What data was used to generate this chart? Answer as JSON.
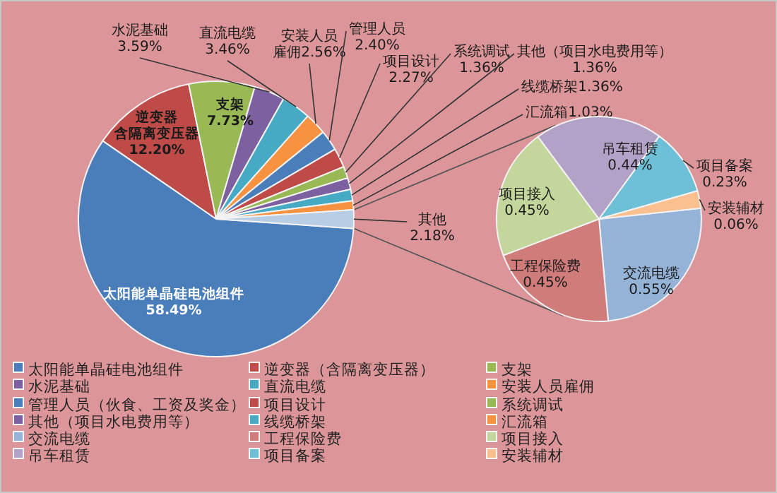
{
  "chart_data": [
    {
      "type": "pie",
      "legend": "bottom",
      "categories": [
        "太阳能单晶硅电池组件",
        "逆变器（含隔离变压器）",
        "支架",
        "水泥基础",
        "直流电缆",
        "安装人员雇佣",
        "管理人员（伙食、工资及奖金）",
        "项目设计",
        "系统调试",
        "其他（项目水电费用等）",
        "线缆桥架",
        "汇流箱",
        null
      ],
      "values": [
        58.49,
        12.2,
        7.73,
        3.59,
        3.46,
        2.56,
        2.4,
        2.27,
        1.36,
        1.36,
        1.36,
        1.03,
        2.18
      ],
      "colors": [
        "#4a7ebb",
        "#be4b48",
        "#98b954",
        "#7d60a0",
        "#46aac5",
        "#f69240",
        "#4a7ebb",
        "#be4b48",
        "#98b954",
        "#7d60a0",
        "#46aac5",
        "#f69240",
        "#b9cde5"
      ],
      "value_labels": [
        "太阳能单晶硅电池组件\n58.49%",
        "逆变器含隔离变压器\n12.20%",
        "支架\n7.73%",
        "水泥基础\n3.59%",
        "直流电缆\n3.46%",
        "安装人员雇佣2.56%",
        "管理人员\n2.40%",
        "项目设计\n2.27%",
        "系统调试\n1.36%",
        "其他（项目水电费用等）\n1.36%",
        "线缆桥架1.36%",
        "汇流箱1.03%",
        "其他\n2.18%"
      ]
    },
    {
      "type": "pie",
      "legend": "bottom",
      "categories": [
        "交流电缆",
        "工程保险费",
        "项目接入",
        "吊车租赁",
        "项目备案",
        "安装辅材"
      ],
      "values": [
        0.55,
        0.45,
        0.45,
        0.44,
        0.23,
        0.06
      ],
      "colors": [
        "#95b3d7",
        "#cf7c7a",
        "#c3d69b",
        "#b3a2c7",
        "#6dc0d5",
        "#fac090"
      ],
      "value_labels": [
        "交流电缆\n0.55%",
        "工程保险费\n0.45%",
        "项目接入\n0.45%",
        "吊车租赁\n0.44%",
        "项目备案\n0.23%",
        "安装辅材\n0.06%"
      ]
    }
  ]
}
